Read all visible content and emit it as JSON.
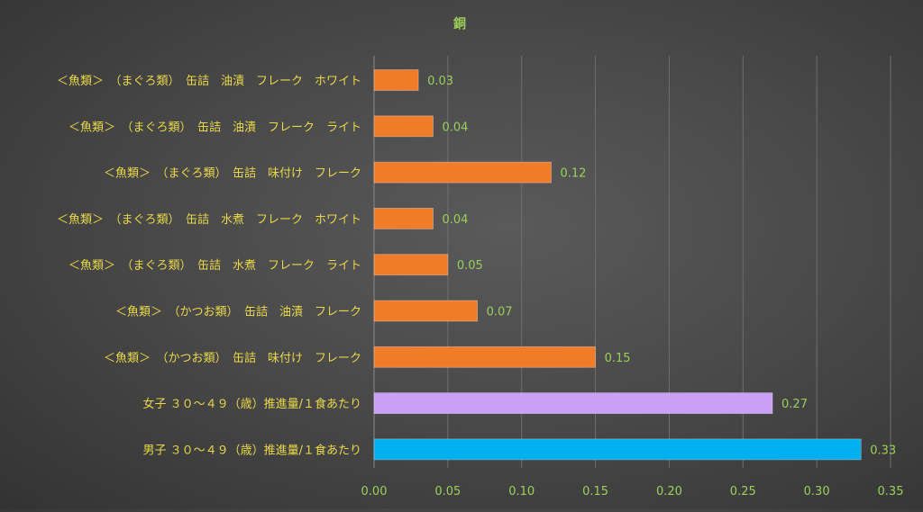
{
  "chart_data": {
    "type": "bar",
    "orientation": "horizontal",
    "title": "銅",
    "categories": [
      "＜魚類＞　（まぐろ類）　缶詰　油漬　フレーク　ホワイト",
      "＜魚類＞　（まぐろ類）　缶詰　油漬　フレーク　ライト",
      "＜魚類＞　（まぐろ類）　缶詰　味付け　フレーク",
      "＜魚類＞　（まぐろ類）　缶詰　水煮　フレーク　ホワイト",
      "＜魚類＞　（まぐろ類）　缶詰　水煮　フレーク　ライト",
      "＜魚類＞　（かつお類）　缶詰　油漬　フレーク",
      "＜魚類＞　（かつお類）　缶詰　味付け　フレーク",
      "女子 ３０～４９（歳）推進量/１食あたり",
      "男子 ３０～４９（歳）推進量/１食あたり"
    ],
    "values": [
      0.03,
      0.04,
      0.12,
      0.04,
      0.05,
      0.07,
      0.15,
      0.27,
      0.33
    ],
    "data_labels": [
      "0.03",
      "0.04",
      "0.12",
      "0.04",
      "0.05",
      "0.07",
      "0.15",
      "0.27",
      "0.33"
    ],
    "bar_colors": [
      "#f07c2a",
      "#f07c2a",
      "#f07c2a",
      "#f07c2a",
      "#f07c2a",
      "#f07c2a",
      "#f07c2a",
      "#c9a0f5",
      "#00b0f0"
    ],
    "xlim": [
      0,
      0.35
    ],
    "x_ticks": [
      "0.00",
      "0.05",
      "0.10",
      "0.15",
      "0.20",
      "0.25",
      "0.30",
      "0.35"
    ],
    "x_tick_values": [
      0,
      0.05,
      0.1,
      0.15,
      0.2,
      0.25,
      0.3,
      0.35
    ],
    "grid": "vertical",
    "legend": "none",
    "colors": {
      "category_label": "#e8d84a",
      "tick_label": "#9ccf5a",
      "data_label": "#9ccf5a",
      "title": "#9ccf5a",
      "gridline": "#6e6e6e"
    }
  }
}
